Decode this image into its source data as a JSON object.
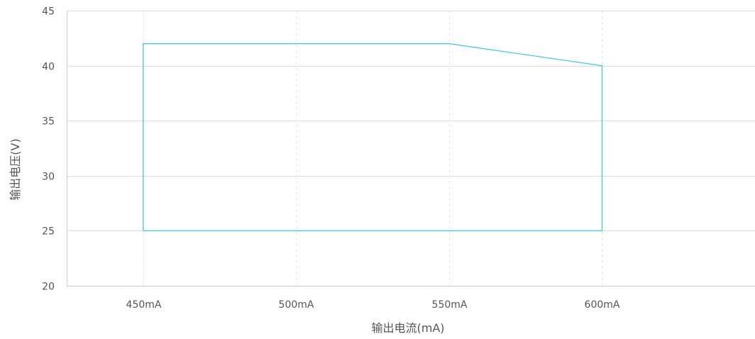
{
  "chart_data": {
    "type": "line",
    "title": "",
    "xlabel": "输出电流(mA)",
    "ylabel": "输出电压(V)",
    "x_ticks": [
      {
        "value": 450,
        "label": "450mA"
      },
      {
        "value": 500,
        "label": "500mA"
      },
      {
        "value": 550,
        "label": "550mA"
      },
      {
        "value": 600,
        "label": "600mA"
      }
    ],
    "xlim": [
      425,
      650
    ],
    "y_ticks": [
      20,
      25,
      30,
      35,
      40,
      45
    ],
    "ylim": [
      20,
      45
    ],
    "grid": {
      "horizontal": "solid",
      "vertical": "dashed"
    },
    "legend": "none",
    "series": [
      {
        "x": [
          450,
          450,
          550,
          600,
          600,
          450
        ],
        "y": [
          25,
          42,
          42,
          40,
          25,
          25
        ]
      }
    ],
    "colors": {
      "series": "#3cc4d9",
      "grid_horizontal": "#dddddd",
      "grid_vertical": "#e6e6e6",
      "axis": "#cccccc",
      "text": "#555555"
    }
  }
}
